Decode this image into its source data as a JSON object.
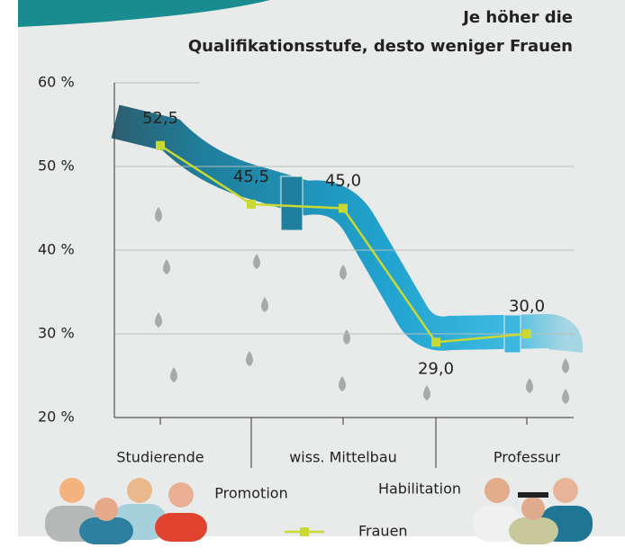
{
  "chart_data": {
    "type": "line",
    "title": [
      "Je höher die",
      "Qualifikationsstufe, desto weniger Frauen"
    ],
    "categories": [
      "Studierende",
      "Promotion",
      "wiss. Mittelbau",
      "Habilitation",
      "Professur"
    ],
    "series": [
      {
        "name": "Frauen",
        "color": "#c9d934",
        "values": [
          52.5,
          45.5,
          45.0,
          29.0,
          30.0
        ],
        "value_labels": [
          "52,5",
          "45,5",
          "45,0",
          "29,0",
          "30,0"
        ]
      }
    ],
    "ylim": [
      20,
      60
    ],
    "yticks": [
      {
        "value": 20,
        "label": "20 %"
      },
      {
        "value": 30,
        "label": "30 %"
      },
      {
        "value": 40,
        "label": "40 %"
      },
      {
        "value": 50,
        "label": "50 %"
      },
      {
        "value": 60,
        "label": "60 %"
      }
    ],
    "grid": true
  }
}
